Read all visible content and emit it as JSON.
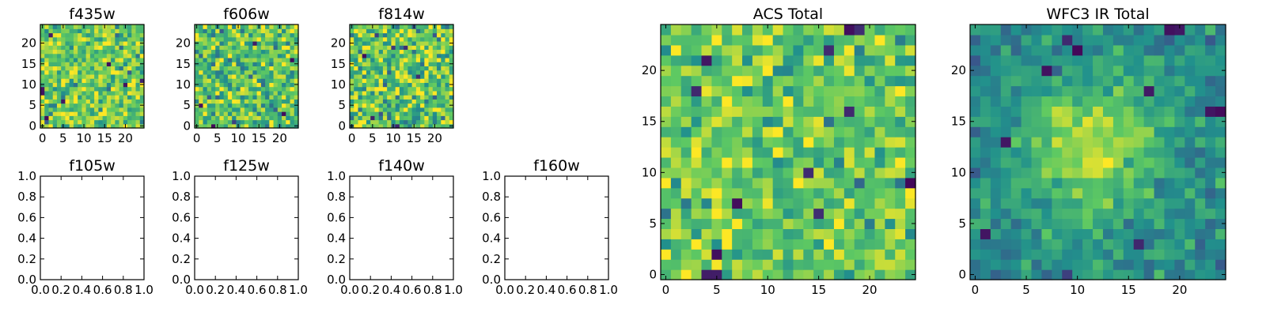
{
  "figure": {
    "background": "#ffffff"
  },
  "colormap": {
    "name": "viridis",
    "stops": [
      "#440154",
      "#3b528b",
      "#21918c",
      "#5ec962",
      "#fde725"
    ]
  },
  "chart_data": [
    {
      "type": "heatmap",
      "title": "f435w",
      "grid_size": 25,
      "xticks": [
        0,
        5,
        10,
        15,
        20
      ],
      "yticks": [
        0,
        5,
        10,
        15,
        20
      ],
      "xlim": [
        -0.5,
        24.5
      ],
      "ylim": [
        -0.5,
        24.5
      ],
      "value_range": [
        0,
        1
      ],
      "pattern": "noise",
      "seed": 435,
      "noise_mean": 0.76,
      "noise_sd": 0.15,
      "dark_pixels": [
        [
          1,
          2
        ],
        [
          0,
          8
        ],
        [
          0,
          9
        ],
        [
          2,
          22
        ],
        [
          20,
          10
        ],
        [
          24,
          11
        ],
        [
          16,
          15
        ],
        [
          5,
          6
        ]
      ]
    },
    {
      "type": "heatmap",
      "title": "f606w",
      "grid_size": 25,
      "xticks": [
        0,
        5,
        10,
        15,
        20
      ],
      "yticks": [
        0,
        5,
        10,
        15,
        20
      ],
      "xlim": [
        -0.5,
        24.5
      ],
      "ylim": [
        -0.5,
        24.5
      ],
      "value_range": [
        0,
        1
      ],
      "pattern": "noise",
      "seed": 606,
      "noise_mean": 0.72,
      "noise_sd": 0.17,
      "dark_pixels": [
        [
          4,
          0
        ],
        [
          23,
          16
        ],
        [
          14,
          20
        ],
        [
          1,
          5
        ],
        [
          21,
          3
        ]
      ]
    },
    {
      "type": "heatmap",
      "title": "f814w",
      "grid_size": 25,
      "xticks": [
        0,
        5,
        10,
        15,
        20
      ],
      "yticks": [
        0,
        5,
        10,
        15,
        20
      ],
      "xlim": [
        -0.5,
        24.5
      ],
      "ylim": [
        -0.5,
        24.5
      ],
      "value_range": [
        0,
        1
      ],
      "pattern": "noise",
      "seed": 814,
      "noise_mean": 0.73,
      "noise_sd": 0.19,
      "dark_pixels": [
        [
          5,
          2
        ],
        [
          3,
          17
        ],
        [
          16,
          12
        ],
        [
          11,
          0
        ],
        [
          13,
          19
        ]
      ]
    },
    {
      "type": "heatmap",
      "title": "f105w",
      "empty": true,
      "xticks": [
        "0.0",
        "0.2",
        "0.4",
        "0.6",
        "0.8",
        "1.0"
      ],
      "yticks": [
        "0.0",
        "0.2",
        "0.4",
        "0.6",
        "0.8",
        "1.0"
      ],
      "xlim": [
        0,
        1
      ],
      "ylim": [
        0,
        1
      ]
    },
    {
      "type": "heatmap",
      "title": "f125w",
      "empty": true,
      "xticks": [
        "0.0",
        "0.2",
        "0.4",
        "0.6",
        "0.8",
        "1.0"
      ],
      "yticks": [
        "0.0",
        "0.2",
        "0.4",
        "0.6",
        "0.8",
        "1.0"
      ],
      "xlim": [
        0,
        1
      ],
      "ylim": [
        0,
        1
      ]
    },
    {
      "type": "heatmap",
      "title": "f140w",
      "empty": true,
      "xticks": [
        "0.0",
        "0.2",
        "0.4",
        "0.6",
        "0.8",
        "1.0"
      ],
      "yticks": [
        "0.0",
        "0.2",
        "0.4",
        "0.6",
        "0.8",
        "1.0"
      ],
      "xlim": [
        0,
        1
      ],
      "ylim": [
        0,
        1
      ]
    },
    {
      "type": "heatmap",
      "title": "f160w",
      "empty": true,
      "xticks": [
        "0.0",
        "0.2",
        "0.4",
        "0.6",
        "0.8",
        "1.0"
      ],
      "yticks": [
        "0.0",
        "0.2",
        "0.4",
        "0.6",
        "0.8",
        "1.0"
      ],
      "xlim": [
        0,
        1
      ],
      "ylim": [
        0,
        1
      ]
    },
    {
      "type": "heatmap",
      "title": "ACS Total",
      "grid_size": 25,
      "xticks": [
        0,
        5,
        10,
        15,
        20
      ],
      "yticks": [
        0,
        5,
        10,
        15,
        20
      ],
      "xlim": [
        -0.5,
        24.5
      ],
      "ylim": [
        -0.5,
        24.5
      ],
      "value_range": [
        0,
        1
      ],
      "pattern": "noise",
      "seed": 1234,
      "noise_mean": 0.74,
      "noise_sd": 0.14,
      "dark_pixels": [
        [
          4,
          0
        ],
        [
          5,
          0
        ],
        [
          3,
          18
        ],
        [
          4,
          21
        ],
        [
          16,
          22
        ],
        [
          18,
          24
        ],
        [
          19,
          24
        ],
        [
          24,
          9
        ],
        [
          7,
          7
        ],
        [
          18,
          16
        ],
        [
          15,
          6
        ],
        [
          14,
          10
        ],
        [
          5,
          2
        ]
      ]
    },
    {
      "type": "heatmap",
      "title": "WFC3 IR Total",
      "grid_size": 25,
      "xticks": [
        0,
        5,
        10,
        15,
        20
      ],
      "yticks": [
        0,
        5,
        10,
        15,
        20
      ],
      "xlim": [
        -0.5,
        24.5
      ],
      "ylim": [
        -0.5,
        24.5
      ],
      "value_range": [
        0,
        1
      ],
      "pattern": "blob",
      "seed": 42,
      "noise_mean": 0.48,
      "noise_sd": 0.09,
      "blob": {
        "center_x": 11.5,
        "center_y": 12.5,
        "sigma": 4.5,
        "amplitude": 0.42
      },
      "dark_pixels": [
        [
          9,
          23
        ],
        [
          19,
          24
        ],
        [
          20,
          24
        ],
        [
          23,
          16
        ],
        [
          24,
          16
        ],
        [
          1,
          4
        ],
        [
          16,
          3
        ],
        [
          3,
          13
        ],
        [
          17,
          18
        ],
        [
          10,
          22
        ],
        [
          7,
          20
        ]
      ]
    }
  ]
}
